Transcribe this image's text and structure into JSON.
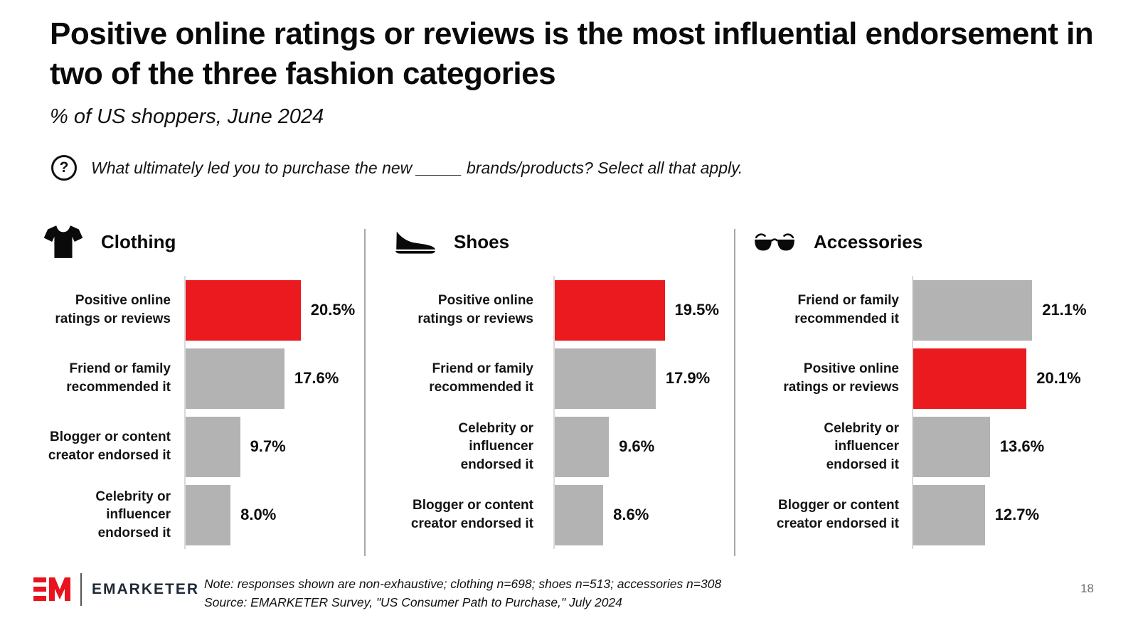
{
  "title": "Positive online ratings or reviews is the most influential endorsement in two of the three fashion categories",
  "subtitle": "% of US shoppers, June 2024",
  "question": {
    "icon": "question-circle-icon",
    "icon_glyph": "?",
    "text": "What ultimately led you to purchase the new _____ brands/products? Select all that apply."
  },
  "chart_data": {
    "type": "bar",
    "orientation": "horizontal",
    "unit": "%",
    "scale_max": 31.8,
    "grid": false,
    "legend": false,
    "colors": {
      "highlight": "#EA1A1F",
      "default": "#B3B3B3"
    },
    "panels": [
      {
        "icon": "tshirt-icon",
        "category": "Clothing",
        "bars": [
          {
            "label": "Positive online\nratings or reviews",
            "value": 20.5,
            "display": "20.5%",
            "highlight": true
          },
          {
            "label": "Friend or family\nrecommended it",
            "value": 17.6,
            "display": "17.6%",
            "highlight": false
          },
          {
            "label": "Blogger or content\ncreator endorsed it",
            "value": 9.7,
            "display": "9.7%",
            "highlight": false
          },
          {
            "label": "Celebrity or\ninfluencer\nendorsed it",
            "value": 8.0,
            "display": "8.0%",
            "highlight": false
          }
        ]
      },
      {
        "icon": "shoe-icon",
        "category": "Shoes",
        "bars": [
          {
            "label": "Positive online\nratings or reviews",
            "value": 19.5,
            "display": "19.5%",
            "highlight": true
          },
          {
            "label": "Friend or family\nrecommended it",
            "value": 17.9,
            "display": "17.9%",
            "highlight": false
          },
          {
            "label": "Celebrity or\ninfluencer\nendorsed it",
            "value": 9.6,
            "display": "9.6%",
            "highlight": false
          },
          {
            "label": "Blogger or content\ncreator endorsed it",
            "value": 8.6,
            "display": "8.6%",
            "highlight": false
          }
        ]
      },
      {
        "icon": "sunglasses-icon",
        "category": "Accessories",
        "bars": [
          {
            "label": "Friend or family\nrecommended it",
            "value": 21.1,
            "display": "21.1%",
            "highlight": false
          },
          {
            "label": "Positive online\nratings or reviews",
            "value": 20.1,
            "display": "20.1%",
            "highlight": true
          },
          {
            "label": "Celebrity or\ninfluencer\nendorsed it",
            "value": 13.6,
            "display": "13.6%",
            "highlight": false
          },
          {
            "label": "Blogger or content\ncreator endorsed it",
            "value": 12.7,
            "display": "12.7%",
            "highlight": false
          }
        ]
      }
    ]
  },
  "footer": {
    "logo": {
      "mark": "EM",
      "wordmark": "EMARKETER",
      "mark_color": "#E8131E"
    },
    "note": "Note: responses shown are non-exhaustive; clothing n=698; shoes n=513; accessories n=308",
    "source": "Source: EMARKETER Survey, \"US Consumer Path to Purchase,\" July 2024",
    "page_number": "18"
  }
}
